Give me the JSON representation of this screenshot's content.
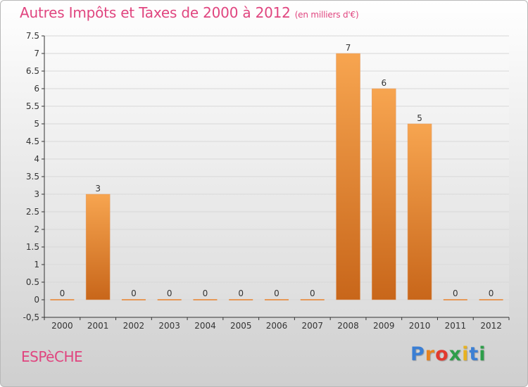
{
  "header": {
    "title": "Autres Impôts et Taxes de 2000 à 2012",
    "subtitle": "(en milliers d'€)"
  },
  "footer": {
    "commune": "ESPèCHE",
    "logo_text": "Proxiti",
    "logo_colors": [
      "#3b7fd4",
      "#e8831f",
      "#e23a2e",
      "#2e9e4a",
      "#e8b21f",
      "#3b7fd4",
      "#2e9e4a"
    ]
  },
  "colors": {
    "bar_top": "#f7a550",
    "bar_bottom": "#c8661a",
    "zero_bar": "#e8822a",
    "axis": "#333333",
    "grid": "#d8d8d8",
    "label": "#333333"
  },
  "chart_data": {
    "type": "bar",
    "title": "Autres Impôts et Taxes de 2000 à 2012",
    "subtitle": "(en milliers d'€)",
    "xlabel": "",
    "ylabel": "",
    "categories": [
      "2000",
      "2001",
      "2002",
      "2003",
      "2004",
      "2005",
      "2006",
      "2007",
      "2008",
      "2009",
      "2010",
      "2011",
      "2012"
    ],
    "values": [
      0,
      3,
      0,
      0,
      0,
      0,
      0,
      0,
      7,
      6,
      5,
      0,
      0
    ],
    "data_labels": [
      "0",
      "3",
      "0",
      "0",
      "0",
      "0",
      "0",
      "0",
      "7",
      "6",
      "5",
      "0",
      "0"
    ],
    "ylim": [
      -0.5,
      7.5
    ],
    "yticks": [
      "-0,5",
      "0",
      "0.5",
      "1",
      "1.5",
      "2",
      "2.5",
      "3",
      "3.5",
      "4",
      "4.5",
      "5",
      "5.5",
      "6",
      "6.5",
      "7",
      "7.5"
    ],
    "ytick_values": [
      -0.5,
      0,
      0.5,
      1,
      1.5,
      2,
      2.5,
      3,
      3.5,
      4,
      4.5,
      5,
      5.5,
      6,
      6.5,
      7,
      7.5
    ],
    "grid": true,
    "legend": "none"
  }
}
